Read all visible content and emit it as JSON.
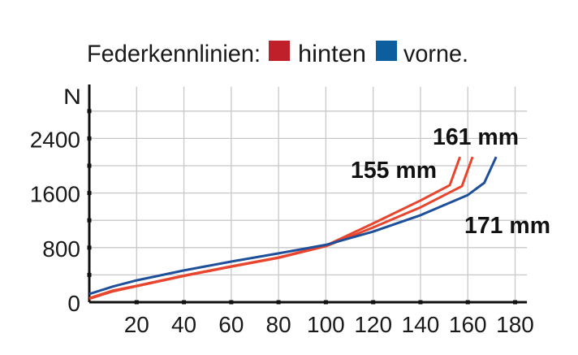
{
  "chart_data": {
    "type": "line",
    "title": "Federkennlinien:",
    "legend": [
      {
        "label": "hinten",
        "color": "#c0202a"
      },
      {
        "label": "vorne.",
        "color": "#0d5e9e"
      }
    ],
    "legend_placement": "top",
    "xlabel": "",
    "ylabel": "N",
    "xlim": [
      0,
      185
    ],
    "ylim": [
      0,
      2800
    ],
    "x_ticks": [
      20,
      40,
      60,
      80,
      100,
      120,
      140,
      160,
      180
    ],
    "y_ticks": [
      0,
      800,
      1600,
      2400
    ],
    "grid": true,
    "series": [
      {
        "name": "hinten 155 mm",
        "label": "155 mm",
        "color": "#e8452e",
        "x": [
          0,
          10,
          20,
          40,
          60,
          80,
          100,
          120,
          140,
          152.4,
          156.7
        ],
        "y": [
          60,
          170,
          240,
          390,
          525,
          655,
          830,
          1155,
          1490,
          1715,
          2130
        ]
      },
      {
        "name": "hinten 161 mm",
        "label": "161 mm",
        "color": "#e8452e",
        "x": [
          0,
          10,
          20,
          40,
          60,
          80,
          100,
          120,
          140,
          157.5,
          162
        ],
        "y": [
          50,
          160,
          235,
          385,
          520,
          650,
          820,
          1095,
          1390,
          1700,
          2130
        ]
      },
      {
        "name": "vorne 171 mm",
        "label": "171 mm",
        "color": "#1e4f9a",
        "x": [
          0,
          10,
          20,
          40,
          60,
          80,
          100,
          120,
          140,
          160,
          167,
          172
        ],
        "y": [
          120,
          230,
          320,
          465,
          595,
          715,
          840,
          1035,
          1275,
          1570,
          1750,
          2130
        ]
      }
    ]
  }
}
